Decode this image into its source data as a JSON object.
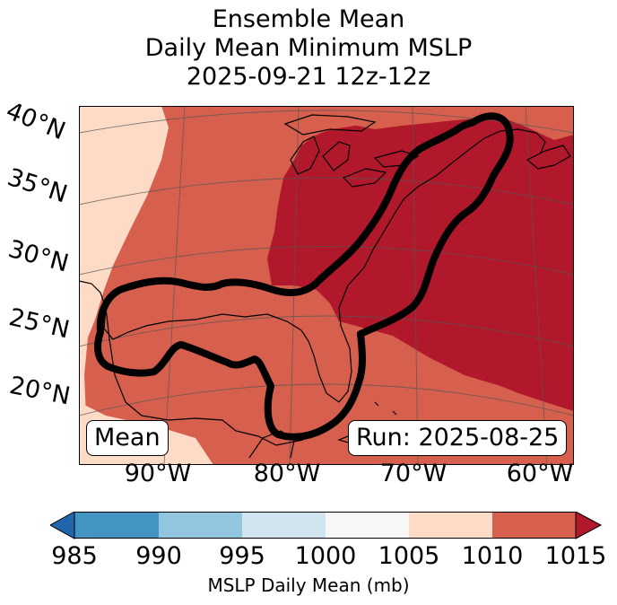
{
  "title": {
    "line1": "Ensemble Mean",
    "line2": "Daily Mean Minimum MSLP",
    "line3": "2025-09-21 12z-12z"
  },
  "map": {
    "lat_labels": [
      "40°N",
      "35°N",
      "30°N",
      "25°N",
      "20°N"
    ],
    "lon_labels": [
      "90°W",
      "80°W",
      "70°W",
      "60°W"
    ],
    "mean_box": "Mean",
    "run_box": "Run: 2025-08-25",
    "contour_color": "#000000"
  },
  "colorbar": {
    "label": "MSLP Daily Mean (mb)",
    "ticks": [
      "985",
      "990",
      "995",
      "1000",
      "1005",
      "1010",
      "1015"
    ],
    "colors": [
      "#2166ac",
      "#4393c3",
      "#92c5de",
      "#d1e5f0",
      "#f7f7f7",
      "#fddbc7",
      "#d6604d",
      "#b2182b"
    ]
  }
}
